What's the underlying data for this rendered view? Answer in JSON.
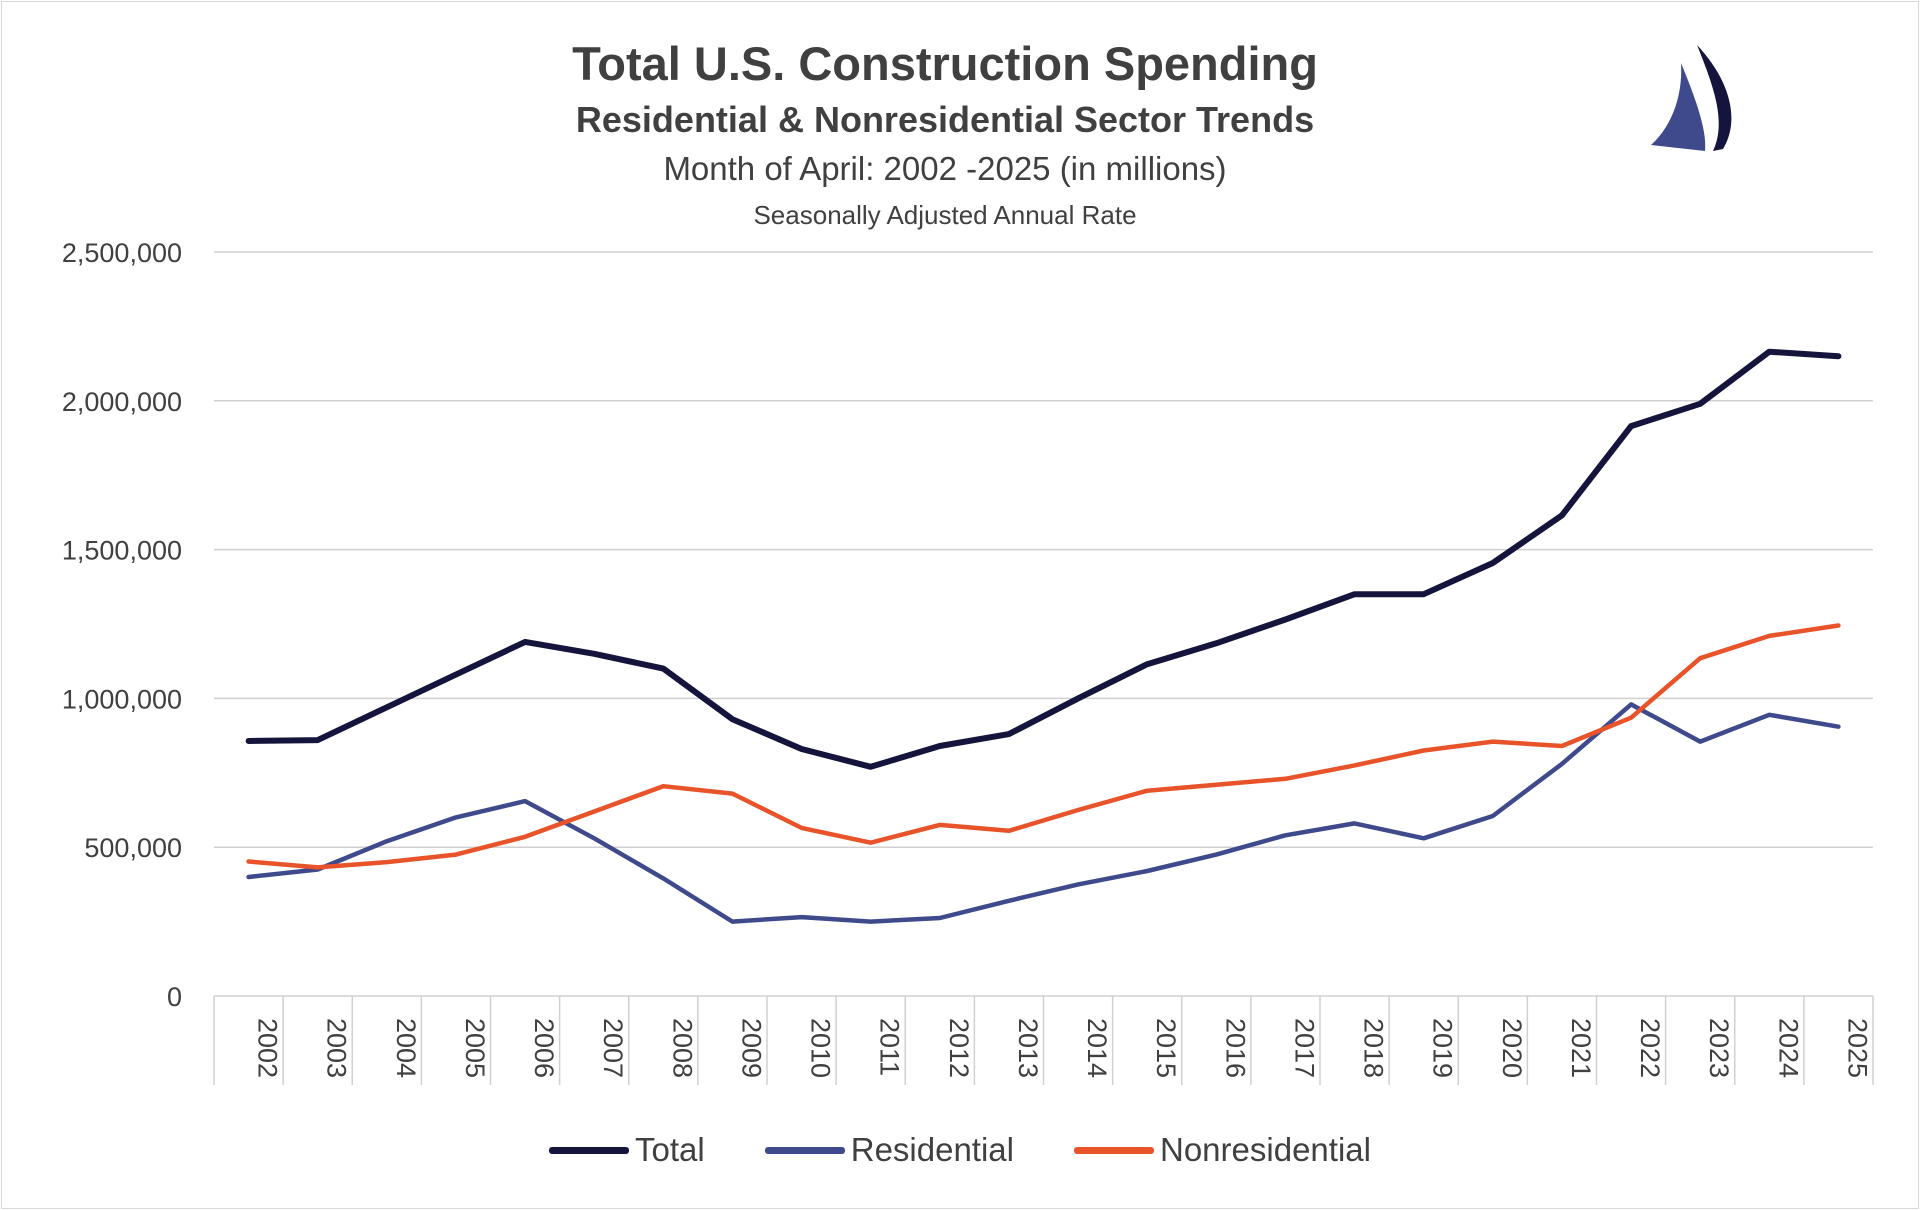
{
  "colors": {
    "total": "#14143c",
    "residential": "#3e4a8c",
    "nonresidential": "#e8532a",
    "grid": "#d0d0d0",
    "axis_text": "#404040"
  },
  "logo": {
    "icon": "sailboat-logo"
  },
  "chart_data": {
    "type": "line",
    "title": "Total U.S. Construction Spending",
    "subtitle": "Residential & Nonresidential Sector Trends",
    "subtitle2": "Month of April: 2002 -2025 (in millions)",
    "subtitle3": "Seasonally Adjusted Annual Rate",
    "xlabel": "",
    "ylabel": "",
    "ylim": [
      0,
      2500000
    ],
    "y_ticks": [
      0,
      500000,
      1000000,
      1500000,
      2000000,
      2500000
    ],
    "y_tick_labels": [
      "0",
      "500,000",
      "1,000,000",
      "1,500,000",
      "2,000,000",
      "2,500,000"
    ],
    "categories": [
      "2002",
      "2003",
      "2004",
      "2005",
      "2006",
      "2007",
      "2008",
      "2009",
      "2010",
      "2011",
      "2012",
      "2013",
      "2014",
      "2015",
      "2016",
      "2017",
      "2018",
      "2019",
      "2020",
      "2021",
      "2022",
      "2023",
      "2024",
      "2025"
    ],
    "grid": true,
    "legend_position": "bottom",
    "series": [
      {
        "name": "Total",
        "color_key": "total",
        "values": [
          857000,
          860000,
          970000,
          1080000,
          1190000,
          1150000,
          1100000,
          930000,
          830000,
          770000,
          840000,
          880000,
          1000000,
          1115000,
          1185000,
          1265000,
          1350000,
          1350000,
          1455000,
          1615000,
          1915000,
          1990000,
          2165000,
          2150000
        ]
      },
      {
        "name": "Residential",
        "color_key": "residential",
        "values": [
          400000,
          425000,
          520000,
          600000,
          655000,
          530000,
          395000,
          250000,
          265000,
          250000,
          262000,
          320000,
          375000,
          420000,
          475000,
          540000,
          580000,
          530000,
          605000,
          780000,
          980000,
          855000,
          945000,
          905000
        ]
      },
      {
        "name": "Nonresidential",
        "color_key": "nonresidential",
        "values": [
          452000,
          432000,
          450000,
          475000,
          535000,
          620000,
          705000,
          680000,
          565000,
          515000,
          575000,
          555000,
          625000,
          690000,
          710000,
          730000,
          775000,
          825000,
          855000,
          840000,
          935000,
          1135000,
          1210000,
          1245000
        ]
      }
    ]
  }
}
